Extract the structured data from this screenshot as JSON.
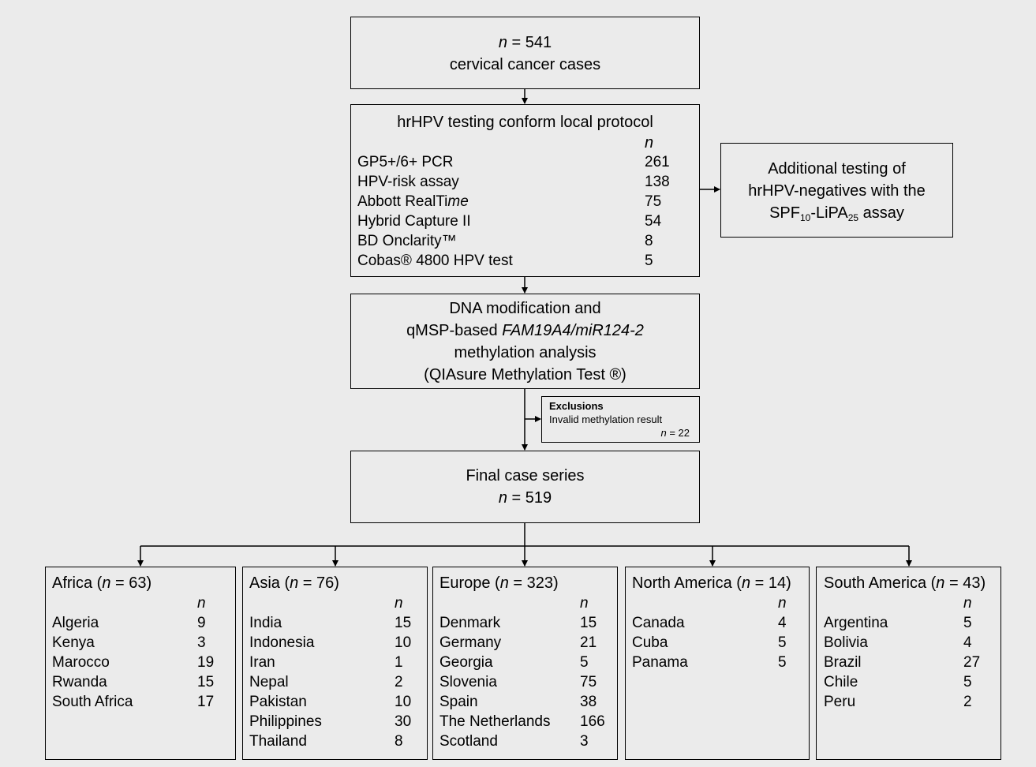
{
  "total": {
    "n_prefix": "n",
    "n_value": "= 541",
    "label": "cervical cancer cases"
  },
  "testing": {
    "title": "hrHPV testing conform local protocol",
    "n_header": "n",
    "rows": [
      {
        "name": "GP5+/6+ PCR",
        "n": "261"
      },
      {
        "name": "HPV-risk assay",
        "n": "138"
      },
      {
        "name_pre": "Abbott RealTi",
        "name_italic": "me",
        "n": "75"
      },
      {
        "name": "Hybrid Capture II",
        "n": "54"
      },
      {
        "name": "BD Onclarity™",
        "n": "8"
      },
      {
        "name": "Cobas® 4800 HPV test",
        "n": "5"
      }
    ]
  },
  "additional": {
    "line1": "Additional testing of",
    "line2": "hrHPV-negatives with the",
    "line3_a": "SPF",
    "line3_sub1": "10",
    "line3_b": "-LiPA",
    "line3_sub2": "25",
    "line3_c": " assay"
  },
  "methylation": {
    "line1": "DNA modification and",
    "line2_pre": "qMSP-based ",
    "line2_italic": "FAM19A4/miR124-2",
    "line3": "methylation analysis",
    "line4": "(QIAsure Methylation Test ®)"
  },
  "exclusions": {
    "title": "Exclusions",
    "reason": "Invalid methylation result",
    "n_prefix": "n",
    "n_value": "= 22"
  },
  "final": {
    "label": "Final case series",
    "n_prefix": "n",
    "n_value": "= 519"
  },
  "regions": [
    {
      "head_pre": "Africa (",
      "n_prefix": "n",
      "head_post": " = 63)",
      "n_header": "n",
      "rows": [
        {
          "name": "Algeria",
          "n": "9"
        },
        {
          "name": "Kenya",
          "n": "3"
        },
        {
          "name": "Marocco",
          "n": "19"
        },
        {
          "name": "Rwanda",
          "n": "15"
        },
        {
          "name": "South Africa",
          "n": "17"
        }
      ]
    },
    {
      "head_pre": "Asia (",
      "n_prefix": "n",
      "head_post": " = 76)",
      "n_header": "n",
      "rows": [
        {
          "name": "India",
          "n": "15"
        },
        {
          "name": "Indonesia",
          "n": "10"
        },
        {
          "name": "Iran",
          "n": "1"
        },
        {
          "name": "Nepal",
          "n": "2"
        },
        {
          "name": "Pakistan",
          "n": "10"
        },
        {
          "name": "Philippines",
          "n": "30"
        },
        {
          "name": "Thailand",
          "n": "8"
        }
      ]
    },
    {
      "head_pre": "Europe (",
      "n_prefix": "n",
      "head_post": " = 323)",
      "n_header": "n",
      "rows": [
        {
          "name": "Denmark",
          "n": "15"
        },
        {
          "name": "Germany",
          "n": "21"
        },
        {
          "name": "Georgia",
          "n": "5"
        },
        {
          "name": "Slovenia",
          "n": "75"
        },
        {
          "name": "Spain",
          "n": "38"
        },
        {
          "name": "The Netherlands",
          "n": "166"
        },
        {
          "name": "Scotland",
          "n": "3"
        }
      ]
    },
    {
      "head_pre": "North America (",
      "n_prefix": "n",
      "head_post": " = 14)",
      "n_header": "n",
      "rows": [
        {
          "name": "Canada",
          "n": "4"
        },
        {
          "name": "Cuba",
          "n": "5"
        },
        {
          "name": "Panama",
          "n": "5"
        }
      ]
    },
    {
      "head_pre": "South America (",
      "n_prefix": "n",
      "head_post": " = 43)",
      "n_header": "n",
      "rows": [
        {
          "name": "Argentina",
          "n": "5"
        },
        {
          "name": "Bolivia",
          "n": "4"
        },
        {
          "name": "Brazil",
          "n": "27"
        },
        {
          "name": "Chile",
          "n": "5"
        },
        {
          "name": "Peru",
          "n": "2"
        }
      ]
    }
  ]
}
